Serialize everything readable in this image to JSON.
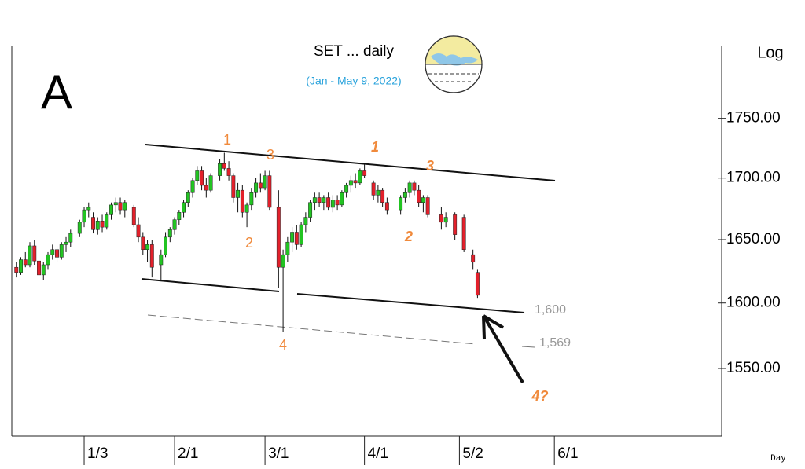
{
  "chart_data": {
    "type": "candlestick",
    "title": "SET ... daily",
    "subtitle": "(Jan - May 9, 2022)",
    "panel_label": "A",
    "scale_label": "Log",
    "x_axis_label": "Day",
    "log_scale": true,
    "up_color": "#22c422",
    "down_color": "#e3202b",
    "xlim": [
      0,
      157
    ],
    "ylim": [
      1500,
      1815
    ],
    "xticks": [
      {
        "value": 16,
        "label": "1/3"
      },
      {
        "value": 36,
        "label": "2/1"
      },
      {
        "value": 56,
        "label": "3/1"
      },
      {
        "value": 78,
        "label": "4/1"
      },
      {
        "value": 99,
        "label": "5/2"
      },
      {
        "value": 120,
        "label": "6/1"
      }
    ],
    "yticks": [
      {
        "value": 1550,
        "label": "1550.00"
      },
      {
        "value": 1600,
        "label": "1600.00"
      },
      {
        "value": 1650,
        "label": "1650.00"
      },
      {
        "value": 1700,
        "label": "1700.00"
      },
      {
        "value": 1750,
        "label": "1750.00"
      }
    ],
    "x": [
      1,
      2,
      3,
      4,
      5,
      6,
      7,
      8,
      9,
      10,
      11,
      12,
      13,
      15,
      16,
      17,
      18,
      19,
      20,
      21,
      22,
      23,
      24,
      25,
      27,
      28,
      29,
      30,
      31,
      33,
      34,
      35,
      36,
      37,
      38,
      39,
      40,
      41,
      42,
      43,
      44,
      46,
      47,
      48,
      49,
      50,
      51,
      52,
      53,
      54,
      55,
      56,
      57,
      59,
      60,
      61,
      62,
      63,
      64,
      65,
      66,
      67,
      68,
      69,
      70,
      71,
      72,
      73,
      74,
      75,
      76,
      77,
      78,
      80,
      81,
      82,
      83,
      86,
      87,
      88,
      89,
      90,
      91,
      92,
      95,
      96,
      98,
      100,
      102,
      103
    ],
    "open": [
      1628,
      1624,
      1634,
      1630,
      1645,
      1633,
      1622,
      1630,
      1638,
      1642,
      1636,
      1646,
      1648,
      1655,
      1664,
      1674,
      1668,
      1658,
      1665,
      1660,
      1670,
      1678,
      1680,
      1674,
      1676,
      1662,
      1652,
      1642,
      1646,
      1630,
      1638,
      1652,
      1658,
      1666,
      1672,
      1680,
      1688,
      1698,
      1706,
      1694,
      1690,
      1702,
      1712,
      1708,
      1702,
      1684,
      1690,
      1672,
      1678,
      1688,
      1696,
      1692,
      1702,
      1676,
      1628,
      1638,
      1648,
      1656,
      1646,
      1662,
      1668,
      1680,
      1684,
      1680,
      1684,
      1676,
      1682,
      1678,
      1688,
      1694,
      1698,
      1696,
      1706,
      1696,
      1686,
      1690,
      1680,
      1674,
      1684,
      1688,
      1696,
      1690,
      1680,
      1684,
      1670,
      1664,
      1670,
      1668,
      1638,
      1624
    ],
    "high": [
      1632,
      1636,
      1640,
      1648,
      1650,
      1638,
      1632,
      1640,
      1646,
      1645,
      1648,
      1652,
      1658,
      1666,
      1676,
      1680,
      1672,
      1668,
      1670,
      1672,
      1680,
      1684,
      1684,
      1682,
      1678,
      1668,
      1656,
      1650,
      1650,
      1642,
      1656,
      1660,
      1668,
      1674,
      1682,
      1690,
      1700,
      1710,
      1710,
      1700,
      1704,
      1716,
      1721,
      1714,
      1704,
      1696,
      1694,
      1680,
      1692,
      1700,
      1704,
      1706,
      1706,
      1690,
      1642,
      1652,
      1660,
      1662,
      1664,
      1672,
      1682,
      1688,
      1688,
      1686,
      1688,
      1686,
      1686,
      1690,
      1696,
      1702,
      1704,
      1708,
      1712,
      1698,
      1694,
      1692,
      1684,
      1686,
      1692,
      1698,
      1698,
      1694,
      1686,
      1686,
      1676,
      1672,
      1672,
      1670,
      1642,
      1626
    ],
    "low": [
      1620,
      1622,
      1628,
      1628,
      1630,
      1618,
      1618,
      1626,
      1634,
      1632,
      1634,
      1640,
      1644,
      1652,
      1660,
      1668,
      1655,
      1654,
      1656,
      1658,
      1666,
      1672,
      1670,
      1668,
      1660,
      1648,
      1638,
      1632,
      1620,
      1618,
      1636,
      1648,
      1654,
      1662,
      1668,
      1676,
      1684,
      1694,
      1690,
      1684,
      1688,
      1698,
      1706,
      1698,
      1680,
      1672,
      1668,
      1660,
      1674,
      1684,
      1688,
      1690,
      1674,
      1612,
      1578,
      1632,
      1640,
      1642,
      1644,
      1656,
      1664,
      1674,
      1676,
      1674,
      1674,
      1672,
      1674,
      1676,
      1684,
      1688,
      1692,
      1694,
      1700,
      1682,
      1680,
      1676,
      1670,
      1670,
      1680,
      1684,
      1686,
      1676,
      1672,
      1668,
      1658,
      1660,
      1650,
      1640,
      1626,
      1604
    ],
    "close": [
      1624,
      1634,
      1630,
      1645,
      1633,
      1622,
      1630,
      1638,
      1642,
      1636,
      1646,
      1648,
      1655,
      1664,
      1674,
      1676,
      1658,
      1665,
      1660,
      1670,
      1678,
      1680,
      1674,
      1680,
      1662,
      1652,
      1642,
      1646,
      1628,
      1638,
      1652,
      1658,
      1666,
      1672,
      1680,
      1688,
      1698,
      1706,
      1694,
      1690,
      1702,
      1712,
      1708,
      1702,
      1684,
      1690,
      1672,
      1678,
      1688,
      1696,
      1692,
      1702,
      1676,
      1628,
      1638,
      1648,
      1656,
      1646,
      1662,
      1668,
      1680,
      1684,
      1680,
      1684,
      1676,
      1682,
      1678,
      1688,
      1694,
      1698,
      1696,
      1706,
      1702,
      1686,
      1690,
      1680,
      1674,
      1684,
      1688,
      1696,
      1690,
      1680,
      1684,
      1670,
      1664,
      1668,
      1654,
      1642,
      1632,
      1606
    ],
    "wave_labels": [
      "1",
      "3",
      "2",
      "4",
      "1",
      "3",
      "2",
      "4?"
    ],
    "level_labels": [
      "1,600",
      "1,569"
    ]
  }
}
